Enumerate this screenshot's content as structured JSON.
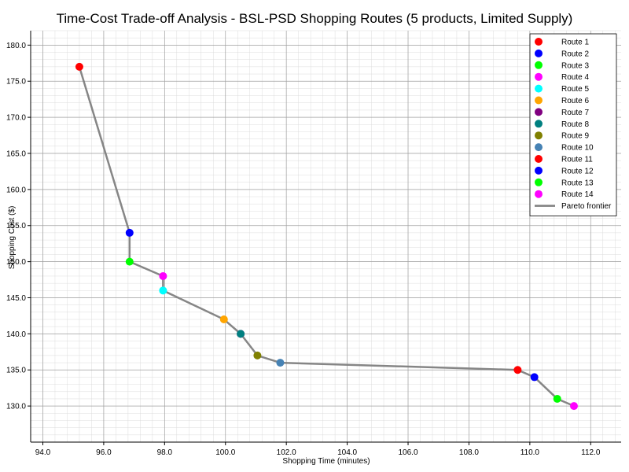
{
  "chart_data": {
    "type": "scatter",
    "title": "Time-Cost Trade-off Analysis - BSL-PSD Shopping Routes (5 products, Limited Supply)",
    "xlabel": "Shopping Time (minutes)",
    "ylabel": "Shopping Cost ($)",
    "xlim": [
      93.6,
      113.0
    ],
    "ylim": [
      125.0,
      182.0
    ],
    "x_ticks": [
      94,
      96,
      98,
      100,
      102,
      104,
      106,
      108,
      110,
      112
    ],
    "y_ticks": [
      130,
      135,
      140,
      145,
      150,
      155,
      160,
      165,
      170,
      175,
      180
    ],
    "tick_decimals": 1,
    "grid": "major and minor",
    "legend_position": "top-right",
    "series": [
      {
        "name": "Route 1",
        "color": "#ff0000",
        "x": 95.2,
        "y": 177.0
      },
      {
        "name": "Route 2",
        "color": "#0000ff",
        "x": 96.85,
        "y": 154.0
      },
      {
        "name": "Route 3",
        "color": "#00ff00",
        "x": 96.85,
        "y": 150.0
      },
      {
        "name": "Route 4",
        "color": "#ff00ff",
        "x": 97.95,
        "y": 148.0
      },
      {
        "name": "Route 5",
        "color": "#00ffff",
        "x": 97.95,
        "y": 146.0
      },
      {
        "name": "Route 6",
        "color": "#ffa500",
        "x": 99.95,
        "y": 142.0
      },
      {
        "name": "Route 7",
        "color": "#800080",
        "x": 100.5,
        "y": 140.0
      },
      {
        "name": "Route 8",
        "color": "#008080",
        "x": 100.5,
        "y": 140.0
      },
      {
        "name": "Route 9",
        "color": "#808000",
        "x": 101.05,
        "y": 137.0
      },
      {
        "name": "Route 10",
        "color": "#4682b4",
        "x": 101.8,
        "y": 136.0
      },
      {
        "name": "Route 11",
        "color": "#ff0000",
        "x": 109.6,
        "y": 135.0
      },
      {
        "name": "Route 12",
        "color": "#0000ff",
        "x": 110.15,
        "y": 134.0
      },
      {
        "name": "Route 13",
        "color": "#00ff00",
        "x": 110.9,
        "y": 131.0
      },
      {
        "name": "Route 14",
        "color": "#ff00ff",
        "x": 111.45,
        "y": 130.0
      }
    ],
    "pareto_frontier": {
      "name": "Pareto frontier",
      "color": "#808080",
      "x": [
        95.2,
        96.85,
        96.85,
        97.95,
        97.95,
        99.95,
        100.5,
        101.05,
        101.8,
        109.6,
        110.15,
        110.9,
        111.45
      ],
      "y": [
        177.0,
        154.0,
        150.0,
        148.0,
        146.0,
        142.0,
        140.0,
        137.0,
        136.0,
        135.0,
        134.0,
        131.0,
        130.0
      ]
    }
  }
}
